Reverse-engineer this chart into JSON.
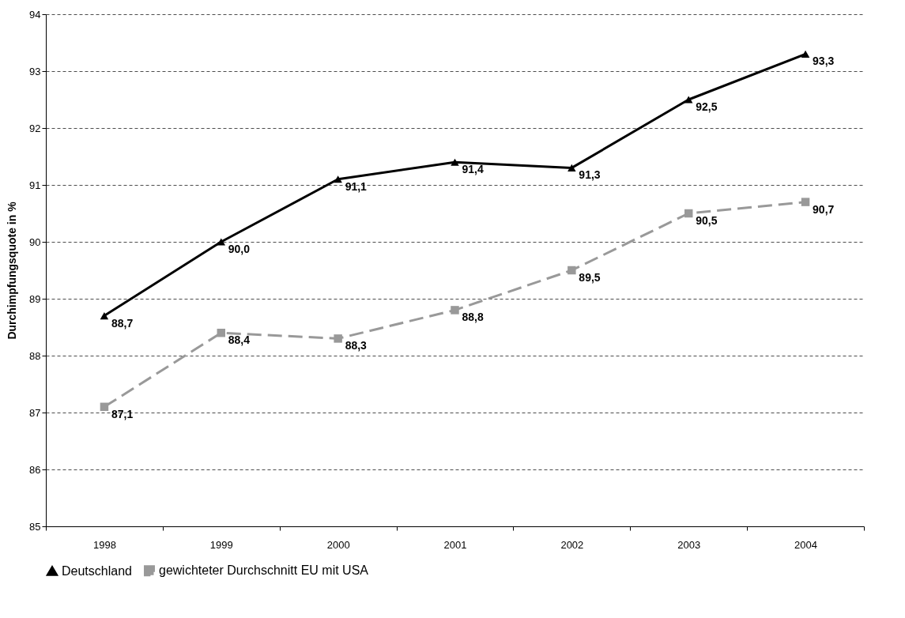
{
  "chart_data": {
    "type": "line",
    "ylabel": "Durchimpfungsquote in %",
    "categories": [
      "1998",
      "1999",
      "2000",
      "2001",
      "2002",
      "2003",
      "2004"
    ],
    "series": [
      {
        "name": "Deutschland",
        "color": "#000000",
        "marker": "triangle",
        "line_style": "solid",
        "values": [
          88.7,
          90.0,
          91.1,
          91.4,
          91.3,
          92.5,
          93.3
        ],
        "value_labels": [
          "88,7",
          "90,0",
          "91,1",
          "91,4",
          "91,3",
          "92,5",
          "93,3"
        ]
      },
      {
        "name": "gewichteter Durchschnitt EU mit USA",
        "color": "#999999",
        "marker": "square",
        "line_style": "dashed",
        "values": [
          87.1,
          88.4,
          88.3,
          88.8,
          89.5,
          90.5,
          90.7
        ],
        "value_labels": [
          "87,1",
          "88,4",
          "88,3",
          "88,8",
          "89,5",
          "90,5",
          "90,7"
        ]
      }
    ],
    "ylim": [
      85,
      94
    ],
    "yticks": [
      85,
      86,
      87,
      88,
      89,
      90,
      91,
      92,
      93,
      94
    ],
    "grid": "y",
    "legend": "bottom"
  }
}
